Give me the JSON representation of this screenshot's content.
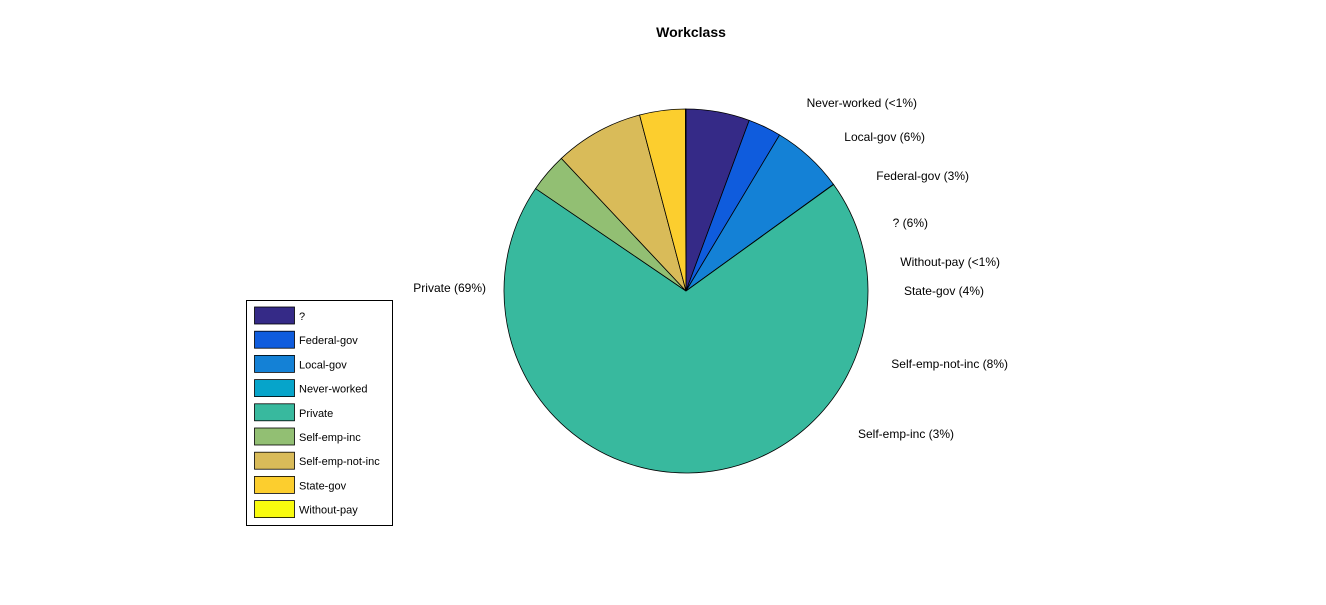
{
  "chart_data": {
    "type": "pie",
    "title": "Workclass",
    "slices": [
      {
        "name": "?",
        "value": 5.64,
        "color": "#352A87",
        "label": "?  (6%)"
      },
      {
        "name": "Federal-gov",
        "value": 2.95,
        "color": "#0F5CDD",
        "label": "Federal-gov  (3%)"
      },
      {
        "name": "Local-gov",
        "value": 6.43,
        "color": "#1481D6",
        "label": "Local-gov  (6%)"
      },
      {
        "name": "Never-worked",
        "value": 0.02,
        "color": "#06A4CA",
        "label": "Never-worked  (<1%)"
      },
      {
        "name": "Private",
        "value": 69.4,
        "color": "#38B99E",
        "label": "Private (69%)"
      },
      {
        "name": "Self-emp-inc",
        "value": 3.47,
        "color": "#92BF73",
        "label": "Self-emp-inc  (3%)"
      },
      {
        "name": "Self-emp-not-inc",
        "value": 7.9,
        "color": "#D9BB59",
        "label": "Self-emp-not-inc  (8%)"
      },
      {
        "name": "State-gov",
        "value": 4.05,
        "color": "#FCCE2E",
        "label": "State-gov  (4%)"
      },
      {
        "name": "Without-pay",
        "value": 0.05,
        "color": "#F9FB0E",
        "label": "Without-pay  (<1%)"
      }
    ],
    "legend": {
      "placement": "left",
      "entries": [
        "?",
        "Federal-gov",
        "Local-gov",
        "Never-worked",
        "Private",
        "Self-emp-inc",
        "Self-emp-not-inc",
        "State-gov",
        "Without-pay"
      ]
    }
  }
}
